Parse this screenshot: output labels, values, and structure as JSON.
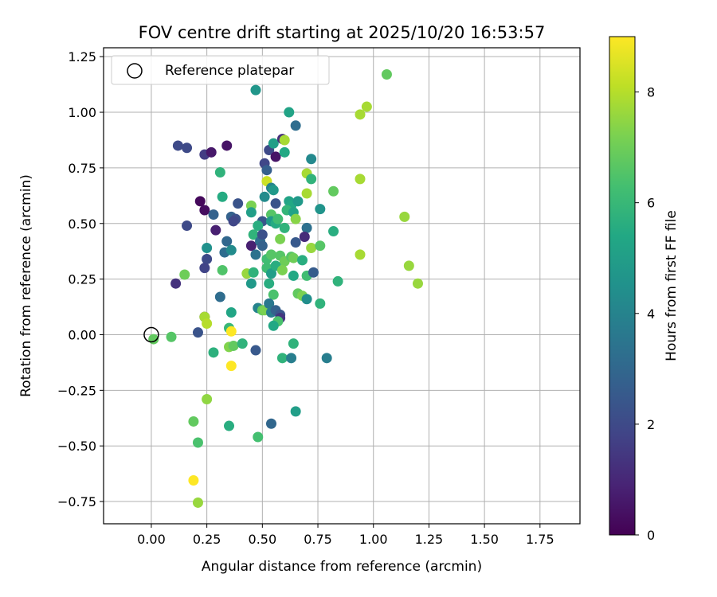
{
  "chart_data": {
    "type": "scatter",
    "title": "FOV centre drift starting at 2025/10/20 16:53:57",
    "xlabel": "Angular distance from reference (arcmin)",
    "ylabel": "Rotation from reference (arcmin)",
    "xlim": [
      -0.215,
      1.93
    ],
    "ylim": [
      -0.85,
      1.29
    ],
    "xticks": [
      0.0,
      0.25,
      0.5,
      0.75,
      1.0,
      1.25,
      1.5,
      1.75
    ],
    "xtick_labels": [
      "0.00",
      "0.25",
      "0.50",
      "0.75",
      "1.00",
      "1.25",
      "1.50",
      "1.75"
    ],
    "yticks": [
      -0.75,
      -0.5,
      -0.25,
      0.0,
      0.25,
      0.5,
      0.75,
      1.0,
      1.25
    ],
    "ytick_labels": [
      "−0.75",
      "−0.50",
      "−0.25",
      "0.00",
      "0.25",
      "0.50",
      "0.75",
      "1.00",
      "1.25"
    ],
    "grid": true,
    "legend": {
      "position": "top-left",
      "entries": [
        "Reference platepar"
      ]
    },
    "reference_point": {
      "x": 0.0,
      "y": 0.0
    },
    "colorbar": {
      "label": "Hours from first FF file",
      "min": 0,
      "max": 9,
      "ticks": [
        0,
        2,
        4,
        6,
        8
      ],
      "tick_labels": [
        "0",
        "2",
        "4",
        "6",
        "8"
      ],
      "colormap": "viridis"
    },
    "points": [
      {
        "x": 0.12,
        "y": 0.85,
        "h": 2.0
      },
      {
        "x": 0.16,
        "y": 0.84,
        "h": 2.0
      },
      {
        "x": 0.24,
        "y": 0.81,
        "h": 1.6
      },
      {
        "x": 0.27,
        "y": 0.82,
        "h": 0.6
      },
      {
        "x": 0.34,
        "y": 0.85,
        "h": 0.5
      },
      {
        "x": 0.22,
        "y": 0.6,
        "h": 0.2
      },
      {
        "x": 0.24,
        "y": 0.56,
        "h": 0.3
      },
      {
        "x": 0.28,
        "y": 0.54,
        "h": 2.8
      },
      {
        "x": 0.16,
        "y": 0.49,
        "h": 2.0
      },
      {
        "x": 0.29,
        "y": 0.47,
        "h": 0.8
      },
      {
        "x": 0.25,
        "y": 0.39,
        "h": 4.5
      },
      {
        "x": 0.34,
        "y": 0.42,
        "h": 3.0
      },
      {
        "x": 0.33,
        "y": 0.37,
        "h": 3.2
      },
      {
        "x": 0.36,
        "y": 0.38,
        "h": 4.3
      },
      {
        "x": 0.25,
        "y": 0.34,
        "h": 2.0
      },
      {
        "x": 0.24,
        "y": 0.3,
        "h": 1.8
      },
      {
        "x": 0.15,
        "y": 0.27,
        "h": 7.0
      },
      {
        "x": 0.11,
        "y": 0.23,
        "h": 1.3
      },
      {
        "x": 0.32,
        "y": 0.29,
        "h": 6.5
      },
      {
        "x": 0.32,
        "y": 0.62,
        "h": 5.5
      },
      {
        "x": 0.31,
        "y": 0.73,
        "h": 5.8
      },
      {
        "x": 0.36,
        "y": 0.53,
        "h": 2.8
      },
      {
        "x": 0.38,
        "y": 0.52,
        "h": 2.2
      },
      {
        "x": 0.39,
        "y": 0.59,
        "h": 2.3
      },
      {
        "x": 0.37,
        "y": 0.51,
        "h": 1.9
      },
      {
        "x": 0.31,
        "y": 0.17,
        "h": 3.2
      },
      {
        "x": 0.36,
        "y": 0.1,
        "h": 5.3
      },
      {
        "x": 0.24,
        "y": 0.08,
        "h": 1.1
      },
      {
        "x": 0.24,
        "y": 0.08,
        "h": 7.8
      },
      {
        "x": 0.25,
        "y": 0.05,
        "h": 8.0
      },
      {
        "x": 0.21,
        "y": 0.01,
        "h": 2.3
      },
      {
        "x": 0.35,
        "y": 0.03,
        "h": 6.0
      },
      {
        "x": 0.36,
        "y": 0.015,
        "h": 9.0
      },
      {
        "x": 0.01,
        "y": -0.02,
        "h": 6.8
      },
      {
        "x": 0.09,
        "y": -0.01,
        "h": 6.6
      },
      {
        "x": 0.28,
        "y": -0.08,
        "h": 5.7
      },
      {
        "x": 0.35,
        "y": -0.055,
        "h": 7.3
      },
      {
        "x": 0.37,
        "y": -0.05,
        "h": 6.8
      },
      {
        "x": 0.41,
        "y": -0.04,
        "h": 5.8
      },
      {
        "x": 0.36,
        "y": -0.14,
        "h": 9.0
      },
      {
        "x": 0.25,
        "y": -0.29,
        "h": 7.5
      },
      {
        "x": 0.19,
        "y": -0.39,
        "h": 6.8
      },
      {
        "x": 0.21,
        "y": -0.485,
        "h": 6.4
      },
      {
        "x": 0.35,
        "y": -0.41,
        "h": 5.6
      },
      {
        "x": 0.19,
        "y": -0.655,
        "h": 9.0
      },
      {
        "x": 0.21,
        "y": -0.755,
        "h": 7.6
      },
      {
        "x": 0.48,
        "y": -0.46,
        "h": 6.3
      },
      {
        "x": 0.54,
        "y": -0.4,
        "h": 3.0
      },
      {
        "x": 0.65,
        "y": -0.345,
        "h": 5.0
      },
      {
        "x": 0.47,
        "y": -0.07,
        "h": 2.5
      },
      {
        "x": 0.59,
        "y": -0.105,
        "h": 5.8
      },
      {
        "x": 0.63,
        "y": -0.105,
        "h": 3.8
      },
      {
        "x": 0.79,
        "y": -0.105,
        "h": 3.8
      },
      {
        "x": 0.64,
        "y": -0.04,
        "h": 5.8
      },
      {
        "x": 0.47,
        "y": 1.1,
        "h": 4.7
      },
      {
        "x": 0.62,
        "y": 1.0,
        "h": 5.2
      },
      {
        "x": 0.65,
        "y": 0.94,
        "h": 3.2
      },
      {
        "x": 0.53,
        "y": 0.83,
        "h": 2.0
      },
      {
        "x": 0.55,
        "y": 0.86,
        "h": 5.0
      },
      {
        "x": 0.56,
        "y": 0.8,
        "h": 0.5
      },
      {
        "x": 0.59,
        "y": 0.88,
        "h": 1.2
      },
      {
        "x": 0.6,
        "y": 0.875,
        "h": 7.8
      },
      {
        "x": 0.6,
        "y": 0.82,
        "h": 5.4
      },
      {
        "x": 0.51,
        "y": 0.77,
        "h": 1.9
      },
      {
        "x": 0.52,
        "y": 0.74,
        "h": 2.7
      },
      {
        "x": 0.72,
        "y": 0.79,
        "h": 4.2
      },
      {
        "x": 0.7,
        "y": 0.725,
        "h": 7.8
      },
      {
        "x": 0.72,
        "y": 0.7,
        "h": 5.8
      },
      {
        "x": 0.52,
        "y": 0.69,
        "h": 8.3
      },
      {
        "x": 0.54,
        "y": 0.66,
        "h": 4.0
      },
      {
        "x": 0.55,
        "y": 0.65,
        "h": 4.8
      },
      {
        "x": 0.51,
        "y": 0.62,
        "h": 4.3
      },
      {
        "x": 0.56,
        "y": 0.59,
        "h": 2.3
      },
      {
        "x": 0.45,
        "y": 0.58,
        "h": 7.2
      },
      {
        "x": 0.45,
        "y": 0.55,
        "h": 5.0
      },
      {
        "x": 0.62,
        "y": 0.6,
        "h": 5.2
      },
      {
        "x": 0.63,
        "y": 0.58,
        "h": 5.4
      },
      {
        "x": 0.66,
        "y": 0.6,
        "h": 4.8
      },
      {
        "x": 0.7,
        "y": 0.635,
        "h": 7.8
      },
      {
        "x": 0.61,
        "y": 0.56,
        "h": 5.9
      },
      {
        "x": 0.64,
        "y": 0.55,
        "h": 5.2
      },
      {
        "x": 0.76,
        "y": 0.565,
        "h": 4.6
      },
      {
        "x": 0.82,
        "y": 0.645,
        "h": 6.8
      },
      {
        "x": 0.5,
        "y": 0.51,
        "h": 2.4
      },
      {
        "x": 0.48,
        "y": 0.49,
        "h": 5.6
      },
      {
        "x": 0.54,
        "y": 0.54,
        "h": 6.6
      },
      {
        "x": 0.54,
        "y": 0.51,
        "h": 4.8
      },
      {
        "x": 0.56,
        "y": 0.5,
        "h": 5.5
      },
      {
        "x": 0.57,
        "y": 0.52,
        "h": 6.2
      },
      {
        "x": 0.6,
        "y": 0.48,
        "h": 5.8
      },
      {
        "x": 0.65,
        "y": 0.52,
        "h": 7.4
      },
      {
        "x": 0.7,
        "y": 0.48,
        "h": 3.3
      },
      {
        "x": 0.82,
        "y": 0.465,
        "h": 5.6
      },
      {
        "x": 0.45,
        "y": 0.4,
        "h": 0.8
      },
      {
        "x": 0.46,
        "y": 0.45,
        "h": 5.8
      },
      {
        "x": 0.49,
        "y": 0.42,
        "h": 3.2
      },
      {
        "x": 0.5,
        "y": 0.4,
        "h": 2.8
      },
      {
        "x": 0.5,
        "y": 0.45,
        "h": 2.2
      },
      {
        "x": 0.58,
        "y": 0.43,
        "h": 7.2
      },
      {
        "x": 0.65,
        "y": 0.415,
        "h": 2.5
      },
      {
        "x": 0.69,
        "y": 0.44,
        "h": 1.1
      },
      {
        "x": 0.72,
        "y": 0.39,
        "h": 7.6
      },
      {
        "x": 0.76,
        "y": 0.4,
        "h": 6.6
      },
      {
        "x": 0.47,
        "y": 0.36,
        "h": 3.4
      },
      {
        "x": 0.52,
        "y": 0.34,
        "h": 6.2
      },
      {
        "x": 0.54,
        "y": 0.36,
        "h": 6.6
      },
      {
        "x": 0.58,
        "y": 0.355,
        "h": 6.6
      },
      {
        "x": 0.6,
        "y": 0.33,
        "h": 7.0
      },
      {
        "x": 0.63,
        "y": 0.35,
        "h": 6.6
      },
      {
        "x": 0.64,
        "y": 0.345,
        "h": 7.0
      },
      {
        "x": 0.68,
        "y": 0.335,
        "h": 5.6
      },
      {
        "x": 0.43,
        "y": 0.275,
        "h": 7.6
      },
      {
        "x": 0.46,
        "y": 0.28,
        "h": 5.8
      },
      {
        "x": 0.52,
        "y": 0.3,
        "h": 6.2
      },
      {
        "x": 0.54,
        "y": 0.275,
        "h": 5.0
      },
      {
        "x": 0.56,
        "y": 0.31,
        "h": 5.6
      },
      {
        "x": 0.59,
        "y": 0.29,
        "h": 7.2
      },
      {
        "x": 0.64,
        "y": 0.265,
        "h": 5.4
      },
      {
        "x": 0.7,
        "y": 0.265,
        "h": 6.2
      },
      {
        "x": 0.73,
        "y": 0.28,
        "h": 2.6
      },
      {
        "x": 0.45,
        "y": 0.23,
        "h": 4.8
      },
      {
        "x": 0.53,
        "y": 0.23,
        "h": 5.6
      },
      {
        "x": 0.55,
        "y": 0.18,
        "h": 6.4
      },
      {
        "x": 0.66,
        "y": 0.185,
        "h": 6.8
      },
      {
        "x": 0.68,
        "y": 0.175,
        "h": 7.2
      },
      {
        "x": 0.7,
        "y": 0.16,
        "h": 4.4
      },
      {
        "x": 0.76,
        "y": 0.14,
        "h": 5.8
      },
      {
        "x": 0.84,
        "y": 0.24,
        "h": 5.8
      },
      {
        "x": 0.48,
        "y": 0.12,
        "h": 4.0
      },
      {
        "x": 0.5,
        "y": 0.11,
        "h": 6.8
      },
      {
        "x": 0.51,
        "y": 0.11,
        "h": 7.2
      },
      {
        "x": 0.53,
        "y": 0.14,
        "h": 3.6
      },
      {
        "x": 0.54,
        "y": 0.1,
        "h": 3.8
      },
      {
        "x": 0.56,
        "y": 0.11,
        "h": 2.8
      },
      {
        "x": 0.58,
        "y": 0.09,
        "h": 2.4
      },
      {
        "x": 0.58,
        "y": 0.075,
        "h": 1.4
      },
      {
        "x": 0.57,
        "y": 0.06,
        "h": 6.4
      },
      {
        "x": 0.55,
        "y": 0.04,
        "h": 5.4
      },
      {
        "x": 1.06,
        "y": 1.17,
        "h": 6.8
      },
      {
        "x": 0.97,
        "y": 1.025,
        "h": 7.8
      },
      {
        "x": 0.94,
        "y": 0.99,
        "h": 7.8
      },
      {
        "x": 0.94,
        "y": 0.7,
        "h": 7.8
      },
      {
        "x": 1.14,
        "y": 0.53,
        "h": 7.6
      },
      {
        "x": 0.94,
        "y": 0.36,
        "h": 7.8
      },
      {
        "x": 1.16,
        "y": 0.31,
        "h": 7.6
      },
      {
        "x": 1.2,
        "y": 0.23,
        "h": 7.6
      }
    ]
  }
}
